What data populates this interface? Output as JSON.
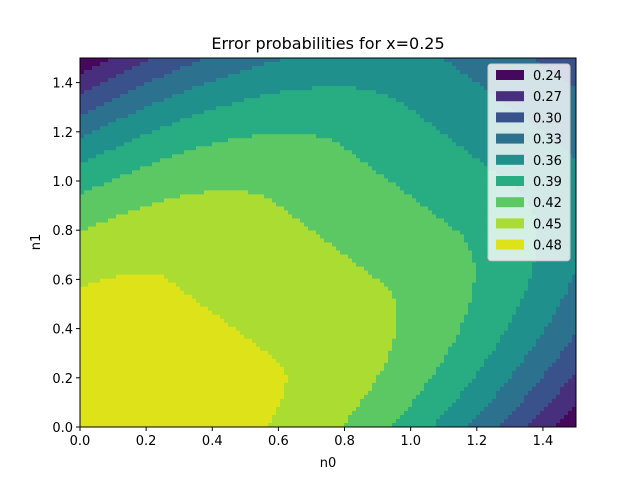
{
  "chart_data": {
    "type": "heatmap",
    "subtype": "filled-contour",
    "title": "Error probabilities for x=0.25",
    "xlabel": "n0",
    "ylabel": "n1",
    "xlim": [
      0.0,
      1.5
    ],
    "ylim": [
      0.0,
      1.5
    ],
    "x_ticks": [
      "0.0",
      "0.2",
      "0.4",
      "0.6",
      "0.8",
      "1.0",
      "1.2",
      "1.4"
    ],
    "y_ticks": [
      "0.0",
      "0.2",
      "0.4",
      "0.6",
      "0.8",
      "1.0",
      "1.2",
      "1.4"
    ],
    "levels": [
      "0.24",
      "0.27",
      "0.30",
      "0.33",
      "0.36",
      "0.39",
      "0.42",
      "0.45",
      "0.48"
    ],
    "level_colors": [
      "#46085c",
      "#472f7d",
      "#3a528b",
      "#2c728e",
      "#20908d",
      "#27ad81",
      "#5cc863",
      "#aadc32",
      "#dde318"
    ],
    "legend_position": "upper right",
    "grid": false
  }
}
